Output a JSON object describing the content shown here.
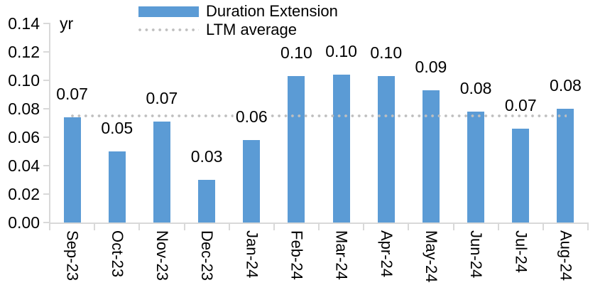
{
  "chart_data": {
    "type": "bar",
    "title": "",
    "unit_label": "yr",
    "categories": [
      "Sep-23",
      "Oct-23",
      "Nov-23",
      "Dec-23",
      "Jan-24",
      "Feb-24",
      "Mar-24",
      "Apr-24",
      "May-24",
      "Jun-24",
      "Jul-24",
      "Aug-24"
    ],
    "series": [
      {
        "name": "Duration Extension",
        "kind": "bar",
        "color": "#5B9BD5",
        "values": [
          0.074,
          0.05,
          0.071,
          0.03,
          0.058,
          0.103,
          0.104,
          0.103,
          0.093,
          0.078,
          0.066,
          0.08
        ],
        "point_labels": [
          "0.07",
          "0.05",
          "0.07",
          "0.03",
          "0.06",
          "0.10",
          "0.10",
          "0.10",
          "0.09",
          "0.08",
          "0.07",
          "0.08"
        ]
      },
      {
        "name": "LTM average",
        "kind": "dotted-line",
        "color": "#BFBFBF",
        "value": 0.075
      }
    ],
    "y_axis": {
      "min": 0,
      "max": 0.14,
      "tick_step": 0.02,
      "tick_labels": [
        "0.14",
        "0.12",
        "0.10",
        "0.08",
        "0.06",
        "0.04",
        "0.02",
        "0.00"
      ]
    },
    "x_axis": {
      "label_rotation": "90deg-clockwise"
    },
    "grid": false,
    "legend_position": "top-left",
    "axis_color": "#D9D9D9",
    "text_color": "#000000",
    "background_color": "#FFFFFF"
  }
}
